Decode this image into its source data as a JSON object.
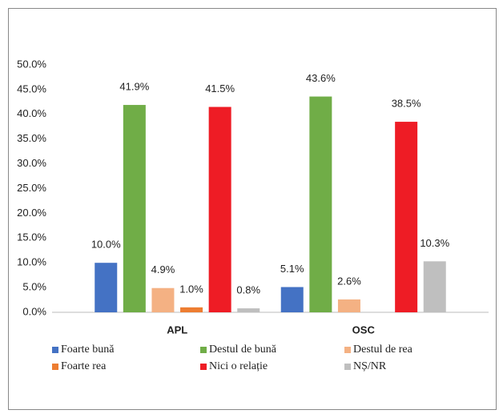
{
  "chart_data": {
    "type": "bar",
    "categories": [
      "APL",
      "OSC"
    ],
    "series": [
      {
        "name": "Foarte bună",
        "color": "#4472c4",
        "values": [
          10.0,
          5.1
        ],
        "value_labels": [
          "10.0%",
          "5.1%"
        ]
      },
      {
        "name": "Destul de bună",
        "color": "#70ad47",
        "values": [
          41.9,
          43.6
        ],
        "value_labels": [
          "41.9%",
          "43.6%"
        ]
      },
      {
        "name": "Destul de rea",
        "color": "#f4b183",
        "values": [
          4.9,
          2.6
        ],
        "value_labels": [
          "4.9%",
          "2.6%"
        ]
      },
      {
        "name": "Foarte rea",
        "color": "#ed7d31",
        "values": [
          1.0,
          null
        ],
        "value_labels": [
          "1.0%",
          null
        ]
      },
      {
        "name": "Nici o relație",
        "color": "#ee1c25",
        "values": [
          41.5,
          38.5
        ],
        "value_labels": [
          "41.5%",
          "38.5%"
        ]
      },
      {
        "name": "NȘ/NR",
        "color": "#bfbfbf",
        "values": [
          0.8,
          10.3
        ],
        "value_labels": [
          "0.8%",
          "10.3%"
        ]
      }
    ],
    "ylim": [
      0,
      50
    ],
    "yticks": [
      {
        "value": 0,
        "label": "0.0%"
      },
      {
        "value": 5,
        "label": "5.0%"
      },
      {
        "value": 10,
        "label": "10.0%"
      },
      {
        "value": 15,
        "label": "15.0%"
      },
      {
        "value": 20,
        "label": "20.0%"
      },
      {
        "value": 25,
        "label": "25.0%"
      },
      {
        "value": 30,
        "label": "30.0%"
      },
      {
        "value": 35,
        "label": "35.0%"
      },
      {
        "value": 40,
        "label": "40.0%"
      },
      {
        "value": 45,
        "label": "45.0%"
      },
      {
        "value": 50,
        "label": "50.0%"
      }
    ],
    "legend": "bottom"
  }
}
